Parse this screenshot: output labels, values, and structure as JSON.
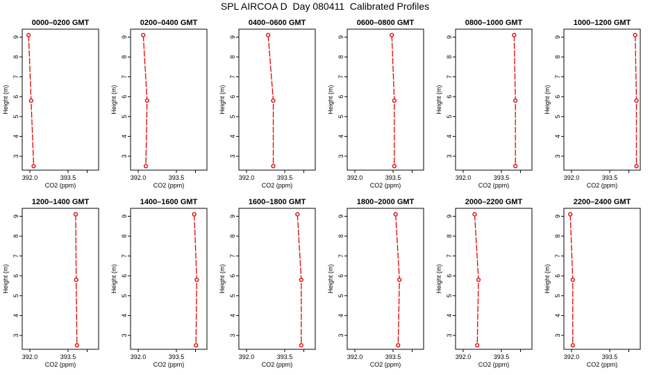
{
  "title": "SPL AIRCOA D  Day 080411  Calibrated Profiles",
  "colors": {
    "line": "#dd0000",
    "axis": "#000000"
  },
  "chart_data": [
    {
      "type": "line",
      "title": "0000–0200 GMT",
      "xlabel": "CO2 (ppm)",
      "ylabel": "Height (m)",
      "xlim": [
        391.7,
        394.7
      ],
      "ylim": [
        2.3,
        9.4
      ],
      "xticks": [
        "392.0",
        "393.5"
      ],
      "yticks": [
        "3",
        "4",
        "5",
        "6",
        "7",
        "8",
        "9"
      ],
      "x": [
        391.95,
        392.05,
        392.15
      ],
      "y": [
        9.1,
        5.8,
        2.5
      ]
    },
    {
      "type": "line",
      "title": "0200–0400 GMT",
      "xlabel": "CO2 (ppm)",
      "ylabel": "Height (m)",
      "xlim": [
        391.7,
        394.7
      ],
      "ylim": [
        2.3,
        9.4
      ],
      "xticks": [
        "392.0",
        "393.5"
      ],
      "yticks": [
        "3",
        "4",
        "5",
        "6",
        "7",
        "8",
        "9"
      ],
      "x": [
        392.2,
        392.35,
        392.3
      ],
      "y": [
        9.1,
        5.8,
        2.5
      ]
    },
    {
      "type": "line",
      "title": "0400–0600 GMT",
      "xlabel": "CO2 (ppm)",
      "ylabel": "Height (m)",
      "xlim": [
        391.7,
        394.7
      ],
      "ylim": [
        2.3,
        9.4
      ],
      "xticks": [
        "392.0",
        "393.5"
      ],
      "yticks": [
        "3",
        "4",
        "5",
        "6",
        "7",
        "8",
        "9"
      ],
      "x": [
        392.85,
        393.05,
        393.05
      ],
      "y": [
        9.1,
        5.8,
        2.5
      ]
    },
    {
      "type": "line",
      "title": "0600–0800 GMT",
      "xlabel": "CO2 (ppm)",
      "ylabel": "Height (m)",
      "xlim": [
        391.7,
        394.7
      ],
      "ylim": [
        2.3,
        9.4
      ],
      "xticks": [
        "392.0",
        "393.5"
      ],
      "yticks": [
        "3",
        "4",
        "5",
        "6",
        "7",
        "8",
        "9"
      ],
      "x": [
        393.45,
        393.55,
        393.55
      ],
      "y": [
        9.1,
        5.8,
        2.5
      ]
    },
    {
      "type": "line",
      "title": "0800–1000 GMT",
      "xlabel": "CO2 (ppm)",
      "ylabel": "Height (m)",
      "xlim": [
        391.7,
        394.7
      ],
      "ylim": [
        2.3,
        9.4
      ],
      "xticks": [
        "392.0",
        "393.5"
      ],
      "yticks": [
        "3",
        "4",
        "5",
        "6",
        "7",
        "8",
        "9"
      ],
      "x": [
        394.0,
        394.05,
        394.05
      ],
      "y": [
        9.1,
        5.8,
        2.5
      ]
    },
    {
      "type": "line",
      "title": "1000–1200 GMT",
      "xlabel": "CO2 (ppm)",
      "ylabel": "Height (m)",
      "xlim": [
        391.7,
        394.7
      ],
      "ylim": [
        2.3,
        9.4
      ],
      "xticks": [
        "392.0",
        "393.5"
      ],
      "yticks": [
        "3",
        "4",
        "5",
        "6",
        "7",
        "8",
        "9"
      ],
      "x": [
        394.5,
        394.55,
        394.55
      ],
      "y": [
        9.1,
        5.8,
        2.5
      ]
    },
    {
      "type": "line",
      "title": "1200–1400 GMT",
      "xlabel": "CO2 (ppm)",
      "ylabel": "Height (m)",
      "xlim": [
        391.7,
        394.7
      ],
      "ylim": [
        2.3,
        9.4
      ],
      "xticks": [
        "392.0",
        "393.5"
      ],
      "yticks": [
        "3",
        "4",
        "5",
        "6",
        "7",
        "8",
        "9"
      ],
      "x": [
        393.8,
        393.82,
        393.85
      ],
      "y": [
        9.1,
        5.8,
        2.5
      ]
    },
    {
      "type": "line",
      "title": "1400–1600 GMT",
      "xlabel": "CO2 (ppm)",
      "ylabel": "Height (m)",
      "xlim": [
        391.7,
        394.7
      ],
      "ylim": [
        2.3,
        9.4
      ],
      "xticks": [
        "392.0",
        "393.5"
      ],
      "yticks": [
        "3",
        "4",
        "5",
        "6",
        "7",
        "8",
        "9"
      ],
      "x": [
        394.2,
        394.3,
        394.27
      ],
      "y": [
        9.1,
        5.8,
        2.5
      ]
    },
    {
      "type": "line",
      "title": "1600–1800 GMT",
      "xlabel": "CO2 (ppm)",
      "ylabel": "Height (m)",
      "xlim": [
        391.7,
        394.7
      ],
      "ylim": [
        2.3,
        9.4
      ],
      "xticks": [
        "392.0",
        "393.5"
      ],
      "yticks": [
        "3",
        "4",
        "5",
        "6",
        "7",
        "8",
        "9"
      ],
      "x": [
        394.0,
        394.15,
        394.15
      ],
      "y": [
        9.1,
        5.8,
        2.5
      ]
    },
    {
      "type": "line",
      "title": "1800–2000 GMT",
      "xlabel": "CO2 (ppm)",
      "ylabel": "Height (m)",
      "xlim": [
        391.7,
        394.7
      ],
      "ylim": [
        2.3,
        9.4
      ],
      "xticks": [
        "392.0",
        "393.5"
      ],
      "yticks": [
        "3",
        "4",
        "5",
        "6",
        "7",
        "8",
        "9"
      ],
      "x": [
        393.6,
        393.75,
        393.7
      ],
      "y": [
        9.1,
        5.8,
        2.5
      ]
    },
    {
      "type": "line",
      "title": "2000–2200 GMT",
      "xlabel": "CO2 (ppm)",
      "ylabel": "Height (m)",
      "xlim": [
        391.7,
        394.7
      ],
      "ylim": [
        2.3,
        9.4
      ],
      "xticks": [
        "392.0",
        "393.5"
      ],
      "yticks": [
        "3",
        "4",
        "5",
        "6",
        "7",
        "8",
        "9"
      ],
      "x": [
        392.45,
        392.6,
        392.55
      ],
      "y": [
        9.1,
        5.8,
        2.5
      ]
    },
    {
      "type": "line",
      "title": "2200–2400 GMT",
      "xlabel": "CO2 (ppm)",
      "ylabel": "Height (m)",
      "xlim": [
        391.7,
        394.7
      ],
      "ylim": [
        2.3,
        9.4
      ],
      "xticks": [
        "392.0",
        "393.5"
      ],
      "yticks": [
        "3",
        "4",
        "5",
        "6",
        "7",
        "8",
        "9"
      ],
      "x": [
        391.95,
        392.05,
        392.05
      ],
      "y": [
        9.1,
        5.8,
        2.5
      ]
    }
  ]
}
